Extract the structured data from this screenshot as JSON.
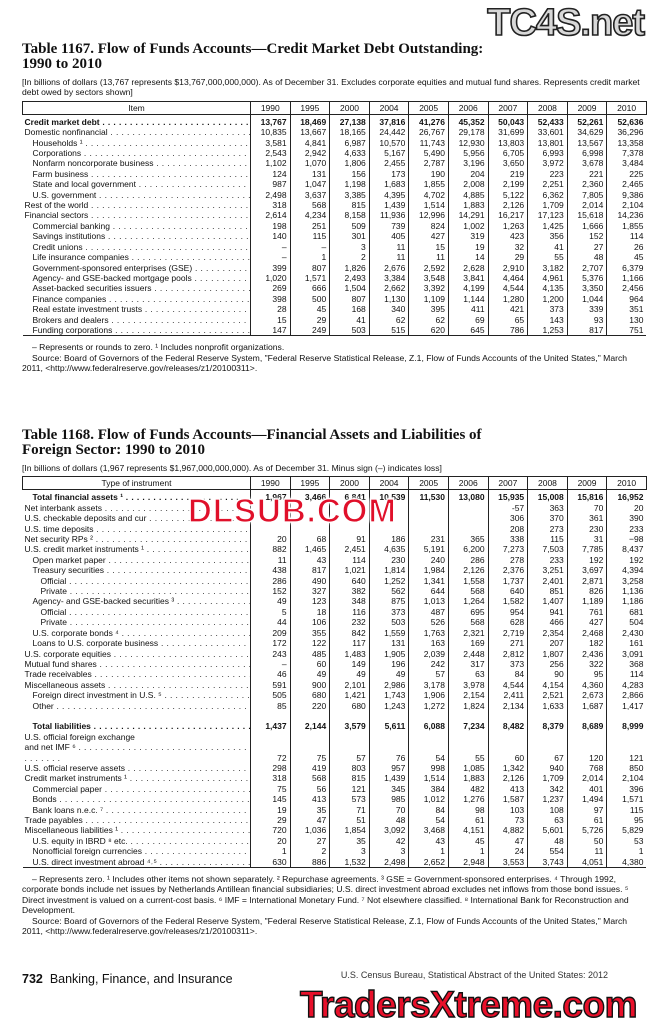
{
  "watermarks": [
    "TC4S.net",
    "DLSUB.COM",
    "TradersXtreme.com"
  ],
  "tables": [
    {
      "title": "Table 1167. Flow of Funds Accounts—Credit Market Debt Outstanding:\n1990 to 2010",
      "note": "[In billions of dollars (13,767 represents $13,767,000,000,000). As of December 31.  Excludes corporate equities and mutual fund shares. Represents credit market debt owed by sectors shown]",
      "columns": [
        "Item",
        "1990",
        "1995",
        "2000",
        "2004",
        "2005",
        "2006",
        "2007",
        "2008",
        "2009",
        "2010"
      ],
      "rows": [
        [
          "Credit market debt",
          "13,767",
          "18,469",
          "27,138",
          "37,816",
          "41,276",
          "45,352",
          "50,043",
          "52,433",
          "52,261",
          "52,636"
        ],
        [
          "Domestic nonfinancial",
          "10,835",
          "13,667",
          "18,165",
          "24,442",
          "26,767",
          "29,178",
          "31,699",
          "33,601",
          "34,629",
          "36,296"
        ],
        [
          "Households ¹",
          "3,581",
          "4,841",
          "6,987",
          "10,570",
          "11,743",
          "12,930",
          "13,803",
          "13,801",
          "13,567",
          "13,358"
        ],
        [
          "Corporations",
          "2,543",
          "2,942",
          "4,633",
          "5,167",
          "5,490",
          "5,956",
          "6,705",
          "6,993",
          "6,998",
          "7,378"
        ],
        [
          "Nonfarm noncorporate business",
          "1,102",
          "1,070",
          "1,806",
          "2,455",
          "2,787",
          "3,196",
          "3,650",
          "3,972",
          "3,678",
          "3,484"
        ],
        [
          "Farm business",
          "124",
          "131",
          "156",
          "173",
          "190",
          "204",
          "219",
          "223",
          "221",
          "225"
        ],
        [
          "State and local government",
          "987",
          "1,047",
          "1,198",
          "1,683",
          "1,855",
          "2,008",
          "2,199",
          "2,251",
          "2,360",
          "2,465"
        ],
        [
          "U.S. government",
          "2,498",
          "3,637",
          "3,385",
          "4,395",
          "4,702",
          "4,885",
          "5,122",
          "6,362",
          "7,805",
          "9,386"
        ],
        [
          "Rest of the world",
          "318",
          "568",
          "815",
          "1,439",
          "1,514",
          "1,883",
          "2,126",
          "1,709",
          "2,014",
          "2,104"
        ],
        [
          "Financial sectors",
          "2,614",
          "4,234",
          "8,158",
          "11,936",
          "12,996",
          "14,291",
          "16,217",
          "17,123",
          "15,618",
          "14,236"
        ],
        [
          "Commercial banking",
          "198",
          "251",
          "509",
          "739",
          "824",
          "1,002",
          "1,263",
          "1,425",
          "1,666",
          "1,855"
        ],
        [
          "Savings institutions",
          "140",
          "115",
          "301",
          "405",
          "427",
          "319",
          "423",
          "356",
          "152",
          "114"
        ],
        [
          "Credit unions",
          "–",
          "–",
          "3",
          "11",
          "15",
          "19",
          "32",
          "41",
          "27",
          "26"
        ],
        [
          "Life insurance companies",
          "–",
          "1",
          "2",
          "11",
          "11",
          "14",
          "29",
          "55",
          "48",
          "45"
        ],
        [
          "Government-sponsored enterprises (GSE)",
          "399",
          "807",
          "1,826",
          "2,676",
          "2,592",
          "2,628",
          "2,910",
          "3,182",
          "2,707",
          "6,379"
        ],
        [
          "Agency- and GSE-backed mortgage pools",
          "1,020",
          "1,571",
          "2,493",
          "3,384",
          "3,548",
          "3,841",
          "4,464",
          "4,961",
          "5,376",
          "1,166"
        ],
        [
          "Asset-backed securities issuers",
          "269",
          "666",
          "1,504",
          "2,662",
          "3,392",
          "4,199",
          "4,544",
          "4,135",
          "3,350",
          "2,456"
        ],
        [
          "Finance companies",
          "398",
          "500",
          "807",
          "1,130",
          "1,109",
          "1,144",
          "1,280",
          "1,200",
          "1,044",
          "964"
        ],
        [
          "Real estate investment trusts",
          "28",
          "45",
          "168",
          "340",
          "395",
          "411",
          "421",
          "373",
          "339",
          "351"
        ],
        [
          "Brokers and dealers",
          "15",
          "29",
          "41",
          "62",
          "62",
          "69",
          "65",
          "143",
          "93",
          "130"
        ],
        [
          "Funding corporations",
          "147",
          "249",
          "503",
          "515",
          "620",
          "645",
          "786",
          "1,253",
          "817",
          "751"
        ]
      ],
      "footnotes": "– Represents or rounds to zero. ¹ Includes nonprofit organizations.",
      "source": "Source: Board of Governors of the Federal Reserve System, \"Federal Reserve Statistical Release, Z.1, Flow of Funds Accounts of the United States,\" March 2011, <http://www.federalreserve.gov/releases/z1/20100311>."
    },
    {
      "title": "Table 1168. Flow of Funds Accounts—Financial Assets and Liabilities of\nForeign Sector: 1990 to 2010",
      "note": "[In billions of dollars (1,967 represents $1,967,000,000,000). As of December 31. Minus sign (–) indicates loss]",
      "columns": [
        "Type of instrument",
        "1990",
        "1995",
        "2000",
        "2004",
        "2005",
        "2006",
        "2007",
        "2008",
        "2009",
        "2010"
      ],
      "rows": [
        [
          "Total financial assets ¹",
          "1,967",
          "3,466",
          "6,841",
          "10,539",
          "11,530",
          "13,080",
          "15,935",
          "15,008",
          "15,816",
          "16,952"
        ],
        [
          "Net interbank assets",
          null,
          null,
          null,
          null,
          null,
          null,
          "-57",
          "363",
          "70",
          "20"
        ],
        [
          "U.S. checkable deposits and cur",
          null,
          null,
          null,
          null,
          null,
          null,
          "306",
          "370",
          "361",
          "390"
        ],
        [
          "U.S. time deposits",
          null,
          null,
          null,
          null,
          null,
          null,
          "208",
          "273",
          "230",
          "233"
        ],
        [
          "Net security RPs ²",
          "20",
          "68",
          "91",
          "186",
          "231",
          "365",
          "338",
          "115",
          "31",
          "−98"
        ],
        [
          "U.S. credit market instruments ¹",
          "882",
          "1,465",
          "2,451",
          "4,635",
          "5,191",
          "6,200",
          "7,273",
          "7,503",
          "7,785",
          "8,437"
        ],
        [
          "Open market paper",
          "11",
          "43",
          "114",
          "230",
          "240",
          "286",
          "278",
          "233",
          "192",
          "192"
        ],
        [
          "Treasury securities",
          "438",
          "817",
          "1,021",
          "1,814",
          "1,984",
          "2,126",
          "2,376",
          "3,251",
          "3,697",
          "4,394"
        ],
        [
          "Official",
          "286",
          "490",
          "640",
          "1,252",
          "1,341",
          "1,558",
          "1,737",
          "2,401",
          "2,871",
          "3,258"
        ],
        [
          "Private",
          "152",
          "327",
          "382",
          "562",
          "644",
          "568",
          "640",
          "851",
          "826",
          "1,136"
        ],
        [
          "Agency- and GSE-backed securities ³",
          "49",
          "123",
          "348",
          "875",
          "1,013",
          "1,264",
          "1,582",
          "1,407",
          "1,189",
          "1,186"
        ],
        [
          "Official",
          "5",
          "18",
          "116",
          "373",
          "487",
          "695",
          "954",
          "941",
          "761",
          "681"
        ],
        [
          "Private",
          "44",
          "106",
          "232",
          "503",
          "526",
          "568",
          "628",
          "466",
          "427",
          "504"
        ],
        [
          "U.S. corporate bonds ⁴",
          "209",
          "355",
          "842",
          "1,559",
          "1,763",
          "2,321",
          "2,719",
          "2,354",
          "2,468",
          "2,430"
        ],
        [
          "Loans to U.S. corporate business",
          "172",
          "122",
          "117",
          "131",
          "163",
          "169",
          "271",
          "207",
          "182",
          "161"
        ],
        [
          "U.S. corporate equities",
          "243",
          "485",
          "1,483",
          "1,905",
          "2,039",
          "2,448",
          "2,812",
          "1,807",
          "2,436",
          "3,091"
        ],
        [
          "Mutual fund shares",
          "–",
          "60",
          "149",
          "196",
          "242",
          "317",
          "373",
          "256",
          "322",
          "368"
        ],
        [
          "Trade receivables",
          "46",
          "49",
          "49",
          "49",
          "57",
          "63",
          "84",
          "90",
          "95",
          "114"
        ],
        [
          "Miscellaneous assets",
          "591",
          "900",
          "2,101",
          "2,986",
          "3,178",
          "3,978",
          "4,544",
          "4,154",
          "4,360",
          "4,283"
        ],
        [
          "Foreign direct investment in U.S. ⁵",
          "505",
          "680",
          "1,421",
          "1,743",
          "1,906",
          "2,154",
          "2,411",
          "2,521",
          "2,673",
          "2,866"
        ],
        [
          "Other",
          "85",
          "220",
          "680",
          "1,243",
          "1,272",
          "1,824",
          "2,134",
          "1,633",
          "1,687",
          "1,417"
        ],
        [
          "Total liabilities",
          "1,437",
          "2,144",
          "3,579",
          "5,611",
          "6,088",
          "7,234",
          "8,482",
          "8,379",
          "8,689",
          "8,999"
        ],
        [
          "U.S. official foreign exchange\nand net IMF ⁶",
          "72",
          "75",
          "57",
          "76",
          "54",
          "55",
          "60",
          "67",
          "120",
          "121"
        ],
        [
          "U.S. official reserve assets",
          "298",
          "419",
          "803",
          "957",
          "998",
          "1,085",
          "1,342",
          "940",
          "768",
          "850"
        ],
        [
          "Credit market instruments ¹",
          "318",
          "568",
          "815",
          "1,439",
          "1,514",
          "1,883",
          "2,126",
          "1,709",
          "2,014",
          "2,104"
        ],
        [
          "Commercial paper",
          "75",
          "56",
          "121",
          "345",
          "384",
          "482",
          "413",
          "342",
          "401",
          "396"
        ],
        [
          "Bonds",
          "145",
          "413",
          "573",
          "985",
          "1,012",
          "1,276",
          "1,587",
          "1,237",
          "1,494",
          "1,571"
        ],
        [
          "Bank loans n.e.c. ⁷",
          "19",
          "35",
          "71",
          "70",
          "84",
          "98",
          "103",
          "108",
          "97",
          "115"
        ],
        [
          "Trade payables",
          "29",
          "47",
          "51",
          "48",
          "54",
          "61",
          "73",
          "63",
          "61",
          "95"
        ],
        [
          "Miscellaneous liabilities ¹",
          "720",
          "1,036",
          "1,854",
          "3,092",
          "3,468",
          "4,151",
          "4,882",
          "5,601",
          "5,726",
          "5,829"
        ],
        [
          "U.S. equity in IBRD ⁸ etc.",
          "20",
          "27",
          "35",
          "42",
          "43",
          "45",
          "47",
          "48",
          "50",
          "53"
        ],
        [
          "Nonofficial foreign currencies",
          "1",
          "2",
          "3",
          "3",
          "1",
          "1",
          "24",
          "554",
          "11",
          "1"
        ],
        [
          "U.S. direct investment abroad ⁴˒⁵",
          "630",
          "886",
          "1,532",
          "2,498",
          "2,652",
          "2,948",
          "3,553",
          "3,743",
          "4,051",
          "4,380"
        ]
      ],
      "footnotes": "– Represents zero. ¹ Includes other items not shown separately. ² Repurchase agreements. ³ GSE = Government-sponsored enterprises. ⁴ Through 1992, corporate bonds include net issues by Netherlands Antillean financial subsidiaries; U.S. direct investment abroad excludes net inflows from those bond issues. ⁵ Direct investment is valued on a current-cost basis. ⁶ IMF = International Monetary Fund. ⁷ Not elsewhere classified. ⁸ International Bank for Reconstruction and Development.",
      "source": "Source: Board of Governors of the Federal Reserve System, \"Federal Reserve Statistical Release, Z.1, Flow of Funds Accounts of the United States,\" March 2011, <http://www.federalreserve.gov/releases/z1/20100311>."
    }
  ],
  "footer": {
    "page": "732",
    "section": "Banking, Finance, and Insurance",
    "publication": "U.S. Census Bureau, Statistical Abstract of the United States: 2012"
  }
}
